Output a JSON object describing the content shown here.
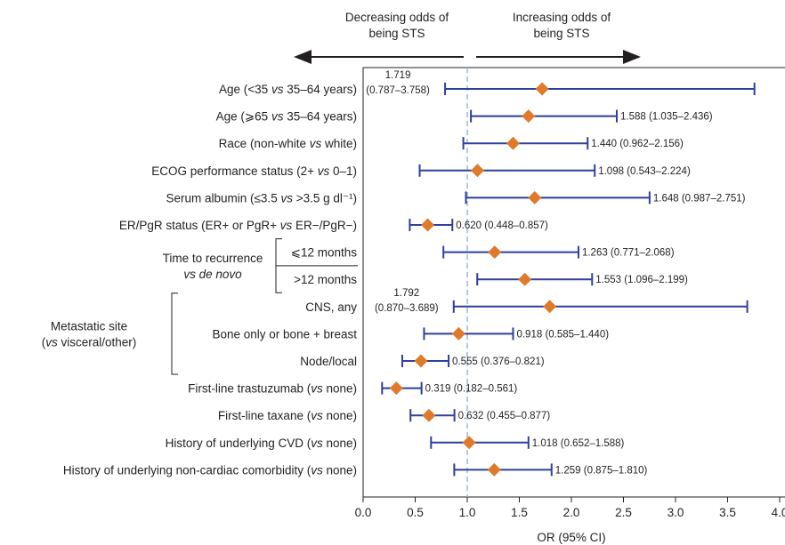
{
  "chart_data": {
    "type": "forest",
    "xlabel": "OR (95% CI)",
    "xlim": [
      0,
      4.0
    ],
    "x_ticks": [
      "0.0",
      "0.5",
      "1.0",
      "1.5",
      "2.0",
      "2.5",
      "3.0",
      "3.5",
      "4.0"
    ],
    "reference_line": 1.0,
    "direction_left": [
      "Decreasing odds of",
      "being STS"
    ],
    "direction_right": [
      "Increasing odds of",
      "being STS"
    ],
    "colors": {
      "ci": "#2e3f9e",
      "point": "#e07a2b",
      "reference": "#9bb8d6",
      "text": "#231f20"
    },
    "groups": [
      {
        "label_lines": [
          "Time to recurrence",
          "vs de novo"
        ],
        "rows": [
          6,
          7
        ]
      },
      {
        "label_lines": [
          "Metastatic site",
          "(vs visceral/other)"
        ],
        "rows": [
          8,
          9,
          10
        ]
      }
    ],
    "rows": [
      {
        "label": "Age (<35 vs 35–64 years)",
        "or": 1.719,
        "lo": 0.787,
        "hi": 3.758,
        "ci_text": "1.719 (0.787–3.758)",
        "label_left": true
      },
      {
        "label": "Age (⩾65 vs 35–64 years)",
        "or": 1.588,
        "lo": 1.035,
        "hi": 2.436,
        "ci_text": "1.588 (1.035–2.436)"
      },
      {
        "label": "Race (non-white vs white)",
        "or": 1.44,
        "lo": 0.962,
        "hi": 2.156,
        "ci_text": "1.440 (0.962–2.156)"
      },
      {
        "label": "ECOG performance status (2+ vs 0–1)",
        "or": 1.098,
        "lo": 0.543,
        "hi": 2.224,
        "ci_text": "1.098 (0.543–2.224)"
      },
      {
        "label": "Serum albumin (≤3.5 vs >3.5 g dl⁻¹)",
        "or": 1.648,
        "lo": 0.987,
        "hi": 2.751,
        "ci_text": "1.648 (0.987–2.751)"
      },
      {
        "label": "ER/PgR status (ER+ or PgR+ vs ER−/PgR−)",
        "or": 0.62,
        "lo": 0.448,
        "hi": 0.857,
        "ci_text": "0.620 (0.448–0.857)"
      },
      {
        "label": "⩽12 months",
        "or": 1.263,
        "lo": 0.771,
        "hi": 2.068,
        "ci_text": "1.263 (0.771–2.068)"
      },
      {
        "label": ">12 months",
        "or": 1.553,
        "lo": 1.096,
        "hi": 2.199,
        "ci_text": "1.553 (1.096–2.199)"
      },
      {
        "label": "CNS, any",
        "or": 1.792,
        "lo": 0.87,
        "hi": 3.689,
        "ci_text": "1.792 (0.870–3.689)",
        "label_left": true
      },
      {
        "label": "Bone only or bone + breast",
        "or": 0.918,
        "lo": 0.585,
        "hi": 1.44,
        "ci_text": "0.918 (0.585–1.440)"
      },
      {
        "label": "Node/local",
        "or": 0.555,
        "lo": 0.376,
        "hi": 0.821,
        "ci_text": "0.555 (0.376–0.821)"
      },
      {
        "label": "First-line trastuzumab (vs none)",
        "or": 0.319,
        "lo": 0.182,
        "hi": 0.561,
        "ci_text": "0.319 (0.182–0.561)"
      },
      {
        "label": "First-line taxane (vs none)",
        "or": 0.632,
        "lo": 0.455,
        "hi": 0.877,
        "ci_text": "0.632 (0.455–0.877)"
      },
      {
        "label": "History of underlying CVD (vs none)",
        "or": 1.018,
        "lo": 0.652,
        "hi": 1.588,
        "ci_text": "1.018 (0.652–1.588)"
      },
      {
        "label": "History of underlying non-cardiac comorbidity (vs none)",
        "or": 1.259,
        "lo": 0.875,
        "hi": 1.81,
        "ci_text": "1.259 (0.875–1.810)"
      }
    ]
  }
}
